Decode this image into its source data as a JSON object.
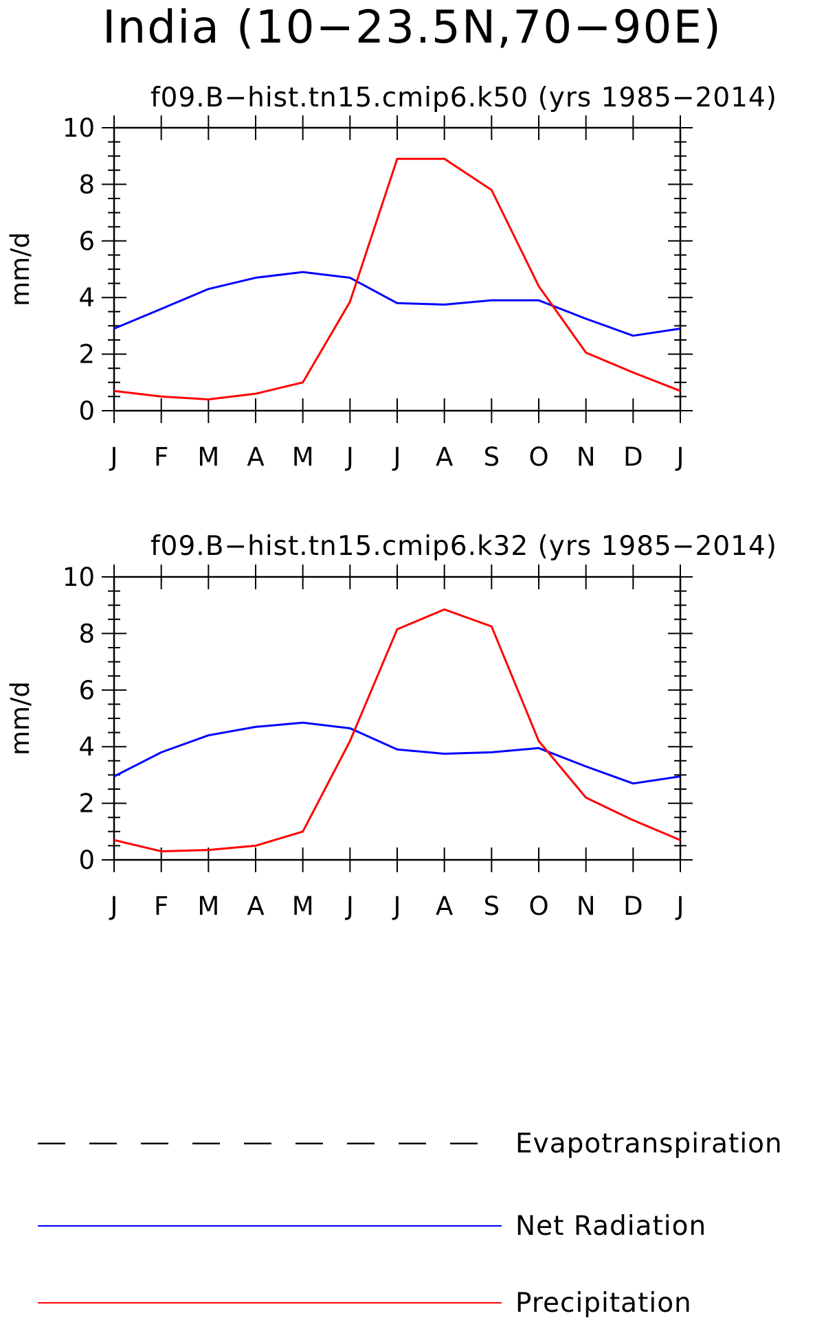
{
  "figure": {
    "title": "India (10−23.5N,70−90E)"
  },
  "legend": {
    "entries": [
      {
        "label": "Evapotranspiration",
        "color": "#000000",
        "dash": true
      },
      {
        "label": "Net Radiation",
        "color": "#0000ff",
        "dash": false
      },
      {
        "label": "Precipitation",
        "color": "#ff0000",
        "dash": false
      }
    ]
  },
  "chart_data": [
    {
      "type": "line",
      "title": "f09.B−hist.tn15.cmip6.k50 (yrs 1985−2014)",
      "ylabel": "mm/d",
      "xlabel": "",
      "ylim": [
        0,
        10
      ],
      "yticks": [
        "0",
        "2",
        "4",
        "6",
        "8",
        "10"
      ],
      "categories": [
        "J",
        "F",
        "M",
        "A",
        "M",
        "J",
        "J",
        "A",
        "S",
        "O",
        "N",
        "D",
        "J"
      ],
      "series": [
        {
          "name": "Net Radiation",
          "color": "#0000ff",
          "values": [
            2.9,
            3.6,
            4.3,
            4.7,
            4.9,
            4.7,
            3.8,
            3.75,
            3.9,
            3.9,
            3.25,
            2.65,
            2.9
          ]
        },
        {
          "name": "Precipitation",
          "color": "#ff0000",
          "values": [
            0.7,
            0.5,
            0.4,
            0.6,
            1.0,
            3.85,
            8.9,
            8.9,
            7.8,
            4.4,
            2.05,
            1.35,
            0.7
          ]
        }
      ]
    },
    {
      "type": "line",
      "title": "f09.B−hist.tn15.cmip6.k32 (yrs 1985−2014)",
      "ylabel": "mm/d",
      "xlabel": "",
      "ylim": [
        0,
        10
      ],
      "yticks": [
        "0",
        "2",
        "4",
        "6",
        "8",
        "10"
      ],
      "categories": [
        "J",
        "F",
        "M",
        "A",
        "M",
        "J",
        "J",
        "A",
        "S",
        "O",
        "N",
        "D",
        "J"
      ],
      "series": [
        {
          "name": "Net Radiation",
          "color": "#0000ff",
          "values": [
            2.95,
            3.8,
            4.4,
            4.7,
            4.85,
            4.65,
            3.9,
            3.75,
            3.8,
            3.95,
            3.3,
            2.7,
            2.95
          ]
        },
        {
          "name": "Precipitation",
          "color": "#ff0000",
          "values": [
            0.7,
            0.3,
            0.35,
            0.5,
            1.0,
            4.2,
            8.15,
            8.85,
            8.25,
            4.2,
            2.2,
            1.4,
            0.7
          ]
        }
      ]
    }
  ]
}
